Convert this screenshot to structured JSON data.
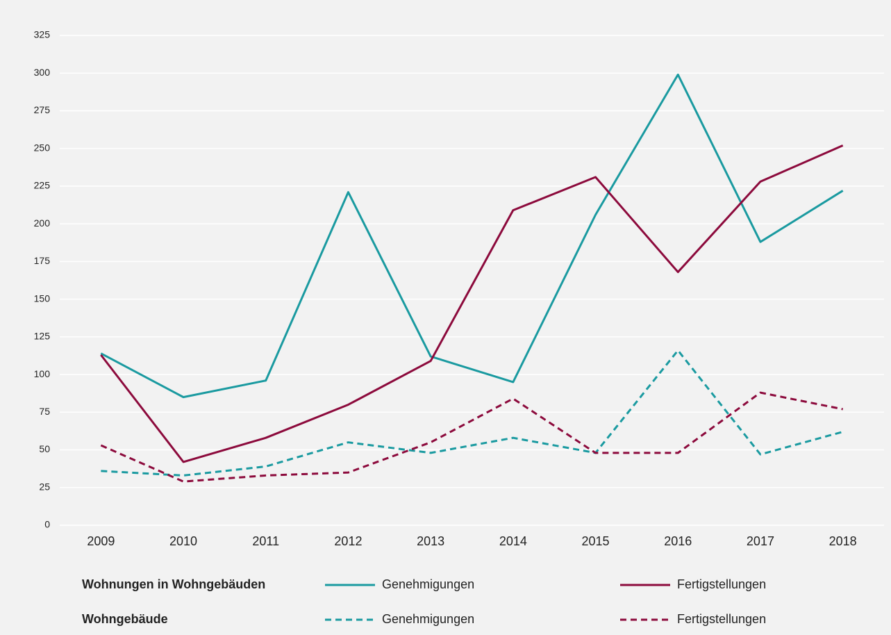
{
  "chart_data": {
    "type": "line",
    "categories": [
      "2009",
      "2010",
      "2011",
      "2012",
      "2013",
      "2014",
      "2015",
      "2016",
      "2017",
      "2018"
    ],
    "ylim": [
      0,
      325
    ],
    "yticks": [
      0,
      25,
      50,
      75,
      100,
      125,
      150,
      175,
      200,
      225,
      250,
      275,
      300,
      325
    ],
    "grid": true,
    "groups": [
      {
        "label": "Wohnungen in Wohngebäuden",
        "series": [
          {
            "name": "Genehmigungen",
            "color": "#1a9aa0",
            "dashed": false,
            "values": [
              114,
              85,
              96,
              221,
              112,
              95,
              206,
              299,
              188,
              222
            ]
          },
          {
            "name": "Fertigstellungen",
            "color": "#8c0a3c",
            "dashed": false,
            "values": [
              113,
              42,
              58,
              80,
              109,
              209,
              231,
              168,
              228,
              252
            ]
          }
        ]
      },
      {
        "label": "Wohngebäude",
        "series": [
          {
            "name": "Genehmigungen",
            "color": "#1a9aa0",
            "dashed": true,
            "values": [
              36,
              33,
              39,
              55,
              48,
              58,
              48,
              116,
              47,
              62
            ]
          },
          {
            "name": "Fertigstellungen",
            "color": "#8c0a3c",
            "dashed": true,
            "values": [
              53,
              29,
              33,
              35,
              55,
              84,
              48,
              48,
              88,
              77
            ]
          }
        ]
      }
    ]
  }
}
